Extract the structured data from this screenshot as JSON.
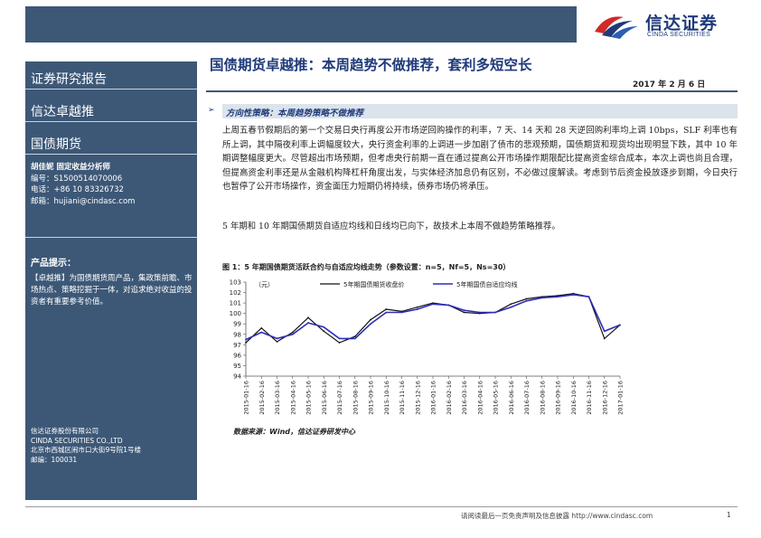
{
  "logo": {
    "cn": "信达证券",
    "en": "CINDA SECURITIES"
  },
  "sidebar": {
    "report_type": "证券研究报告",
    "series": "信达卓越推",
    "category": "国债期货",
    "analyst_name": "胡佳妮  固定收益分析师",
    "analyst_id": "编号：S1500514070006",
    "analyst_phone": "电话：+86 10 83326732",
    "analyst_email": "邮箱：hujiani@cindasc.com",
    "hint_title": "产品提示：",
    "hint_text": "【卓越推】为国债期货周产品，集政策前瞻、市场热点、策略挖掘于一体，对追求绝对收益的投资者有重要参考价值。",
    "company_cn": "信达证券股份有限公司",
    "company_en": "CINDA SECURITIES CO.,LTD",
    "company_addr": "北京市西城区闹市口大街9号院1号楼",
    "company_zip": "邮编：100031"
  },
  "report": {
    "title": "国债期货卓越推：本周趋势不做推荐，套利多短空长",
    "date": "2017 年 2 月 6 日",
    "section_title": "方向性策略：本周趋势策略不做推荐",
    "para1": "上周五春节假期后的第一个交易日央行再度公开市场逆回购操作的利率，7 天、14 天和 28 天逆回购利率均上调 10bps，SLF 利率也有所上调，其中隔夜利率上调幅度较大，央行资金利率的上调进一步加剧了债市的悲观预期，国债期货和现货均出现明显下跌，其中 10 年期调整幅度更大。尽管超出市场预期，但考虑央行前期一直在通过提高公开市场操作期限配比提高资金综合成本，本次上调也尚且合理，但提高资金利率还是从金融机构降杠杆角度出发，与实体经济加息仍有区别，不必做过度解读。考虑到节后资金投放逐步到期，今日央行也暂停了公开市场操作，资金面压力短期仍将持续，债券市场仍将承压。",
    "para2": "5 年期和 10 年期国债期货自适应均线和日线均已向下，故技术上本周不做趋势策略推荐。",
    "figure_caption": "图 1：5 年期国债期货活跃合约与自适应均线走势（参数设置：n=5，Nf=5，Ns=30）",
    "source": "数据来源：Wind，信达证券研发中心"
  },
  "chart_data": {
    "type": "line",
    "unit_label": "（元）",
    "x": [
      "2015-01-16",
      "2015-02-16",
      "2015-03-16",
      "2015-04-16",
      "2015-05-16",
      "2015-06-16",
      "2015-07-16",
      "2015-08-16",
      "2015-09-16",
      "2015-10-16",
      "2015-11-16",
      "2015-12-16",
      "2016-01-16",
      "2016-02-16",
      "2016-03-16",
      "2016-04-16",
      "2016-05-16",
      "2016-06-16",
      "2016-07-16",
      "2016-08-16",
      "2016-09-16",
      "2016-10-16",
      "2016-11-16",
      "2016-12-16",
      "2017-01-16"
    ],
    "ylim": [
      94,
      103
    ],
    "yticks": [
      94,
      95,
      96,
      97,
      98,
      99,
      100,
      101,
      102,
      103
    ],
    "series": [
      {
        "name": "5年期国债期货收盘价",
        "color": "#111111",
        "values": [
          97.2,
          98.6,
          97.3,
          98.2,
          99.6,
          98.3,
          97.2,
          97.8,
          99.4,
          100.4,
          100.2,
          100.6,
          101.0,
          100.8,
          100.1,
          100.0,
          100.1,
          100.9,
          101.4,
          101.6,
          101.7,
          101.9,
          101.6,
          97.6,
          98.9
        ]
      },
      {
        "name": "5年期国债自适应均线",
        "color": "#2d2db8",
        "values": [
          97.5,
          98.2,
          97.6,
          98.0,
          99.1,
          98.7,
          97.6,
          97.6,
          99.0,
          100.1,
          100.1,
          100.4,
          100.9,
          100.8,
          100.3,
          100.1,
          100.1,
          100.6,
          101.2,
          101.5,
          101.6,
          101.8,
          101.6,
          98.3,
          98.9
        ]
      }
    ]
  },
  "footer": {
    "text": "请阅读最后一页免责声明及信息披露 http://www.cindasc.com",
    "page": "1"
  }
}
